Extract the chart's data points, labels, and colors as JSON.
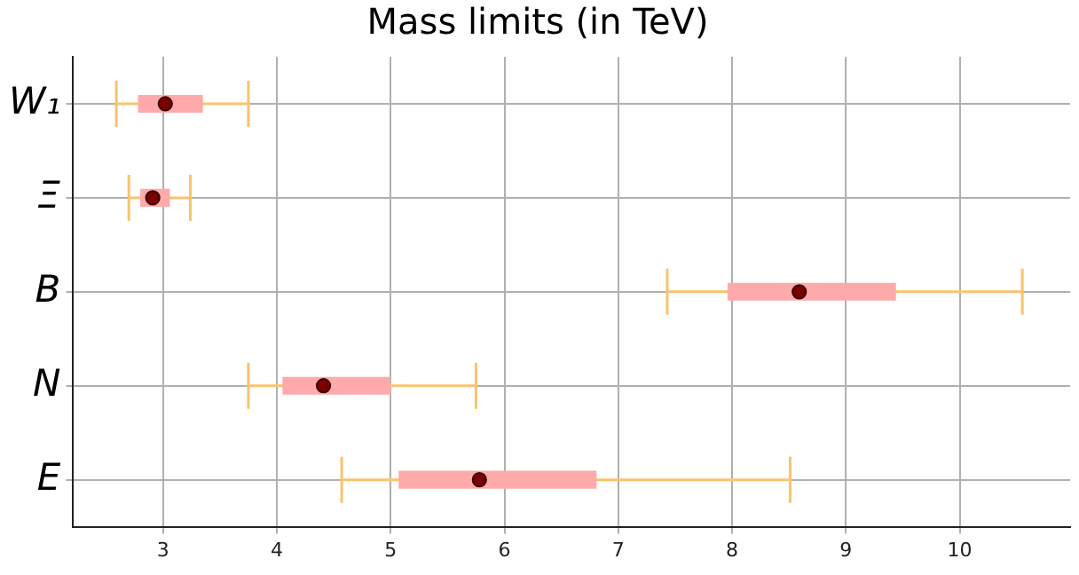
{
  "chart_data": {
    "type": "bar",
    "title": "Mass limits (in TeV)",
    "orientation": "horizontal",
    "categories": [
      "W₁",
      "Ξ",
      "B",
      "N",
      "E"
    ],
    "series": [
      {
        "type": "bar",
        "color": "#ffaaaa",
        "base": [
          2.78,
          2.8,
          7.96,
          4.05,
          5.07
        ],
        "values": [
          0.57,
          0.26,
          1.48,
          0.95,
          1.74
        ]
      },
      {
        "type": "scatter",
        "color": "#7a0000",
        "marker": "circle",
        "values": [
          3.02,
          2.91,
          8.59,
          4.41,
          5.78
        ],
        "errors": [
          [
            2.59,
            3.75
          ],
          [
            2.7,
            3.24
          ],
          [
            7.43,
            10.55
          ],
          [
            3.75,
            5.75
          ],
          [
            4.57,
            8.51
          ]
        ]
      }
    ],
    "xlim": [
      2.21,
      10.97
    ],
    "xticks": [
      3,
      4,
      5,
      6,
      7,
      8,
      9,
      10
    ],
    "grid": true
  }
}
